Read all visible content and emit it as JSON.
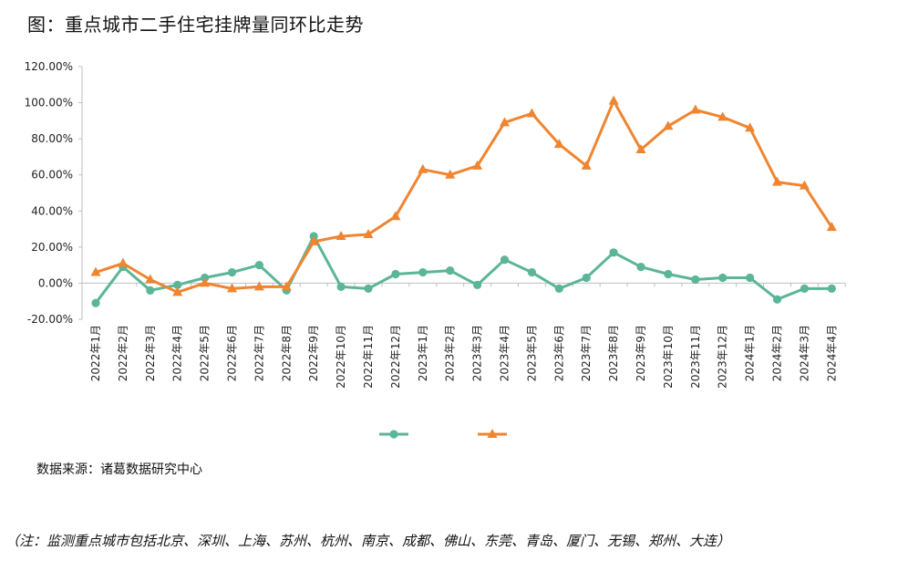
{
  "title": "图：重点城市二手住宅挂牌量同环比走势",
  "source": "数据来源：诸葛数据研究中心",
  "note": "（注：监测重点城市包括北京、深圳、上海、苏州、杭州、南京、成都、佛山、东莞、青岛、厦门、无锡、郑州、大连）",
  "chart_data": {
    "type": "line",
    "categories": [
      "2022年1月",
      "2022年2月",
      "2022年3月",
      "2022年4月",
      "2022年5月",
      "2022年6月",
      "2022年7月",
      "2022年8月",
      "2022年9月",
      "2022年10月",
      "2022年11月",
      "2022年12月",
      "2023年1月",
      "2023年2月",
      "2023年3月",
      "2023年4月",
      "2023年5月",
      "2023年6月",
      "2023年7月",
      "2023年8月",
      "2023年9月",
      "2023年10月",
      "2023年11月",
      "2023年12月",
      "2024年1月",
      "2024年2月",
      "2024年3月",
      "2024年4月"
    ],
    "y_ticks": [
      "120.00%",
      "100.00%",
      "80.00%",
      "60.00%",
      "40.00%",
      "20.00%",
      "0.00%",
      "-20.00%"
    ],
    "ylim": [
      -20,
      120
    ],
    "grid": false,
    "legend_position": "bottom",
    "series": [
      {
        "name": "",
        "color": "#5bb598",
        "marker": "circle",
        "values": [
          -11,
          9,
          -4,
          -1,
          3,
          6,
          10,
          -4,
          26,
          -2,
          -3,
          5,
          6,
          7,
          -1,
          13,
          6,
          -3,
          3,
          17,
          9,
          5,
          2,
          3,
          3,
          -9,
          -3,
          -3
        ]
      },
      {
        "name": "",
        "color": "#ef8530",
        "marker": "triangle",
        "values": [
          6,
          11,
          2,
          -5,
          0,
          -3,
          -2,
          -2,
          23,
          26,
          27,
          37,
          63,
          60,
          65,
          89,
          94,
          77,
          65,
          101,
          74,
          87,
          96,
          92,
          86,
          56,
          54,
          31
        ]
      }
    ]
  }
}
